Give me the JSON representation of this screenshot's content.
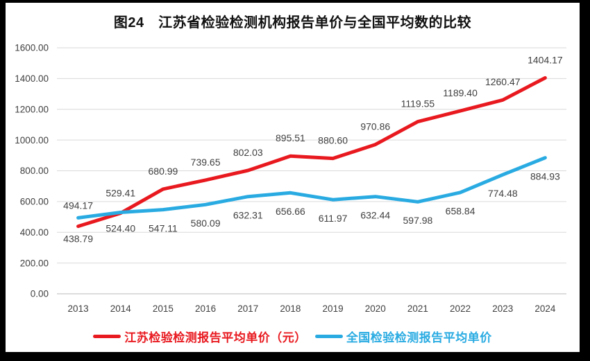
{
  "page": {
    "background": "#000000",
    "panel_background": "#ffffff"
  },
  "chart_data": {
    "type": "line",
    "title": "图24　江苏省检验检测机构报告单价与全国平均数的比较",
    "categories": [
      "2013",
      "2014",
      "2015",
      "2016",
      "2017",
      "2018",
      "2019",
      "2020",
      "2021",
      "2022",
      "2023",
      "2024"
    ],
    "series": [
      {
        "name": "江苏检验检测报告平均单价（元）",
        "color": "#e8191f",
        "values": [
          438.79,
          524.4,
          680.99,
          739.65,
          802.03,
          895.51,
          880.6,
          970.86,
          1119.55,
          1189.4,
          1260.47,
          1404.17
        ],
        "labels": [
          "438.79",
          "524.40",
          "680.99",
          "739.65",
          "802.03",
          "895.51",
          "880.60",
          "970.86",
          "1119.55",
          "1189.40",
          "1260.47",
          "1404.17"
        ]
      },
      {
        "name": "全国检验检测报告平均单价",
        "color": "#29abe2",
        "values": [
          494.17,
          529.41,
          547.11,
          580.09,
          632.31,
          656.66,
          611.97,
          632.44,
          597.98,
          658.84,
          774.48,
          884.93
        ],
        "labels": [
          "494.17",
          "529.41",
          "547.11",
          "580.09",
          "632.31",
          "656.66",
          "611.97",
          "632.44",
          "597.98",
          "658.84",
          "774.48",
          "884.93"
        ]
      }
    ],
    "ylim": [
      0,
      1600
    ],
    "ytick_step": 200,
    "yticks": [
      "0.00",
      "200.00",
      "400.00",
      "600.00",
      "800.00",
      "1000.00",
      "1200.00",
      "1400.00",
      "1600.00"
    ],
    "grid": true,
    "legend_position": "bottom",
    "colors": {
      "grid": "#d9d9d9",
      "axis": "#c6c6c6",
      "tick_text": "#404040",
      "data_label_text": "#3f3f3f",
      "title_text": "#111111"
    }
  }
}
